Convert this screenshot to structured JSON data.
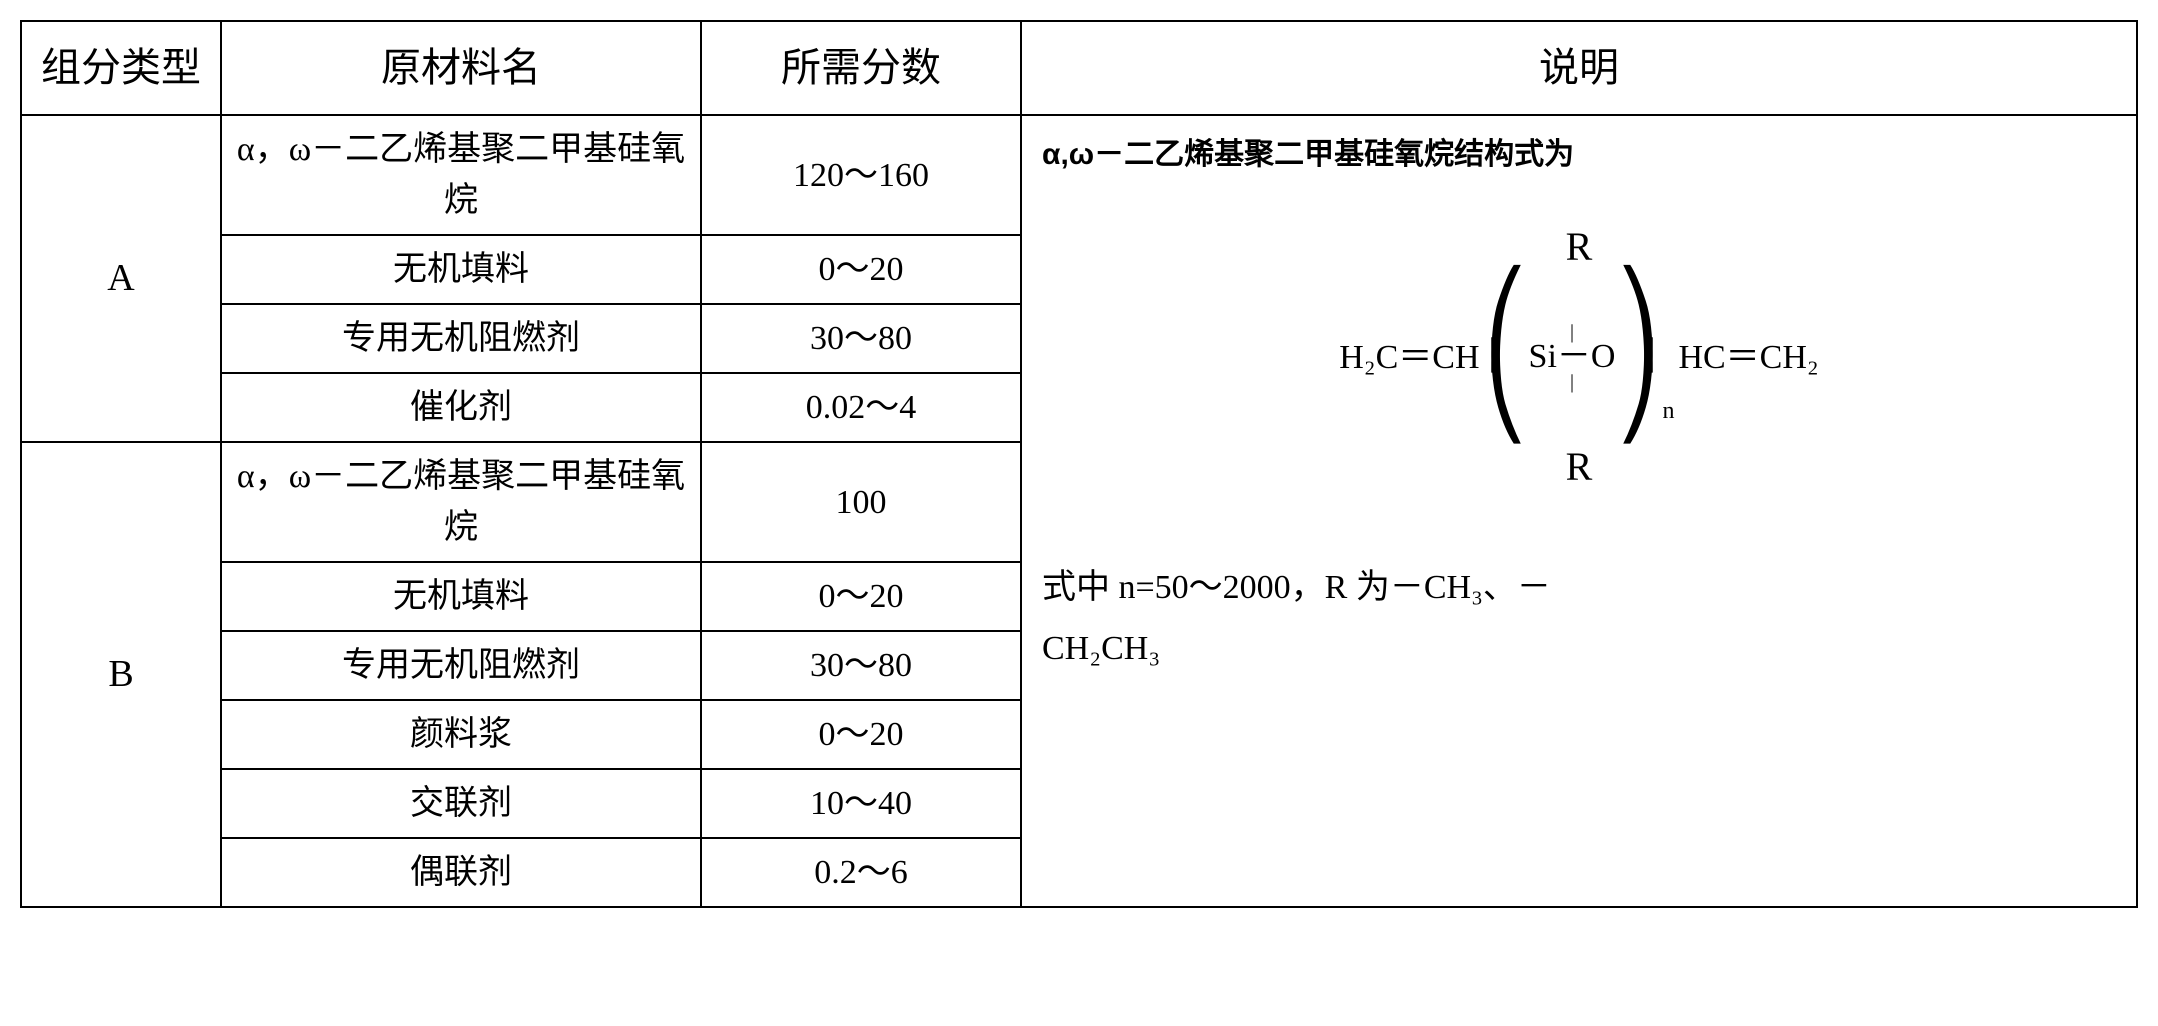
{
  "headers": {
    "type": "组分类型",
    "material": "原材料名",
    "fraction": "所需分数",
    "description": "说明"
  },
  "groups": [
    {
      "type_label": "A",
      "rows": [
        {
          "material": "α，ω－二乙烯基聚二甲基硅氧烷",
          "fraction": "120～160"
        },
        {
          "material": "无机填料",
          "fraction": "0～20"
        },
        {
          "material": "专用无机阻燃剂",
          "fraction": "30～80"
        },
        {
          "material": "催化剂",
          "fraction": "0.02～4"
        }
      ]
    },
    {
      "type_label": "B",
      "rows": [
        {
          "material": "α，ω－二乙烯基聚二甲基硅氧烷",
          "fraction": "100"
        },
        {
          "material": "无机填料",
          "fraction": "0～20"
        },
        {
          "material": "专用无机阻燃剂",
          "fraction": "30～80"
        },
        {
          "material": "颜料浆",
          "fraction": "0～20"
        },
        {
          "material": "交联剂",
          "fraction": "10～40"
        },
        {
          "material": "偶联剂",
          "fraction": "0.2～6"
        }
      ]
    }
  ],
  "description": {
    "title": "α,ω－二乙烯基聚二甲基硅氧烷结构式为",
    "formula": {
      "r_symbol": "R",
      "left_group": "H₂C＝CH",
      "si_o": "Si－O",
      "subscript": "n",
      "right_group": "HC＝CH₂"
    },
    "footer_line1": "式中 n=50～2000，R 为－CH₃、－",
    "footer_line2": "CH₂CH₃"
  },
  "style": {
    "border_color": "#000000",
    "background": "#ffffff",
    "header_fontsize": 40,
    "cell_fontsize": 34
  }
}
